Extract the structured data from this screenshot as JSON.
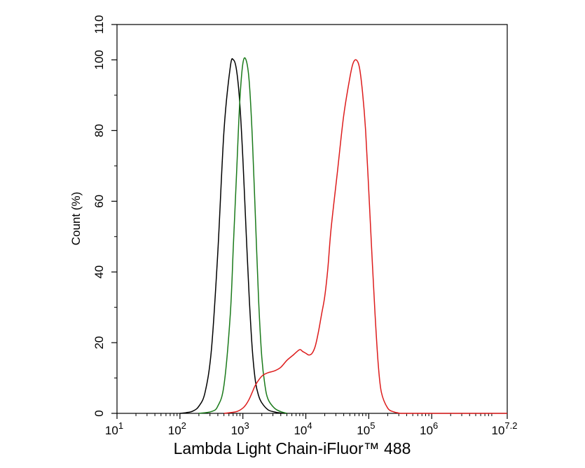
{
  "chart_data": {
    "type": "line",
    "title": "",
    "xlabel": "Lambda Light Chain-iFluor™ 488",
    "ylabel": "Count  (%)",
    "x_scale": "log",
    "xlim": [
      1,
      7.2
    ],
    "ylim": [
      0,
      110
    ],
    "grid": false,
    "legend": "none",
    "x_ticks": [
      {
        "base": "10",
        "exp": "1",
        "value": 1
      },
      {
        "base": "10",
        "exp": "2",
        "value": 2
      },
      {
        "base": "10",
        "exp": "3",
        "value": 3
      },
      {
        "base": "10",
        "exp": "4",
        "value": 4
      },
      {
        "base": "10",
        "exp": "5",
        "value": 5
      },
      {
        "base": "10",
        "exp": "6",
        "value": 6
      },
      {
        "base": "10",
        "exp": "7.2",
        "value": 7.2
      }
    ],
    "y_ticks": [
      "0",
      "20",
      "40",
      "60",
      "80",
      "100",
      "110"
    ],
    "series": [
      {
        "color": "#000000",
        "x": [
          2.0,
          2.1,
          2.2,
          2.3,
          2.4,
          2.5,
          2.6,
          2.7,
          2.8,
          2.85,
          2.9,
          2.95,
          3.0,
          3.05,
          3.1,
          3.15,
          3.2,
          3.25,
          3.3,
          3.4,
          3.5,
          3.6,
          3.7
        ],
        "y": [
          0,
          0.2,
          0.6,
          2,
          6,
          18,
          45,
          80,
          98,
          100,
          97,
          88,
          72,
          52,
          33,
          18,
          9,
          5,
          3,
          1,
          0.4,
          0.1,
          0
        ]
      },
      {
        "color": "#1a7a1a",
        "x": [
          2.3,
          2.5,
          2.6,
          2.7,
          2.8,
          2.85,
          2.9,
          2.95,
          3.0,
          3.05,
          3.1,
          3.15,
          3.2,
          3.25,
          3.3,
          3.35,
          3.4,
          3.5,
          3.6,
          3.7
        ],
        "y": [
          0,
          0.5,
          2,
          8,
          28,
          48,
          68,
          88,
          99,
          100,
          94,
          78,
          55,
          32,
          16,
          8,
          4,
          1.5,
          0.5,
          0
        ]
      },
      {
        "color": "#dd1c1c",
        "x": [
          2.7,
          2.9,
          3.0,
          3.05,
          3.1,
          3.15,
          3.2,
          3.3,
          3.4,
          3.5,
          3.6,
          3.7,
          3.8,
          3.9,
          3.95,
          4.0,
          4.05,
          4.1,
          4.15,
          4.2,
          4.25,
          4.3,
          4.35,
          4.4,
          4.5,
          4.6,
          4.7,
          4.75,
          4.8,
          4.85,
          4.9,
          4.95,
          5.0,
          5.05,
          5.1,
          5.15,
          5.2,
          5.3,
          5.4,
          5.45,
          5.5,
          5.6,
          6.0,
          7.2
        ],
        "y": [
          0,
          0.5,
          1.5,
          2.5,
          4,
          6,
          8,
          10.5,
          11.5,
          12,
          13,
          15,
          16.5,
          18,
          17.5,
          17,
          16.5,
          17,
          19,
          23,
          28,
          33,
          41,
          52,
          68,
          84,
          95,
          99,
          100,
          98,
          91,
          80,
          63,
          45,
          28,
          14,
          6,
          1.5,
          0.4,
          0.2,
          0,
          0,
          0,
          0
        ]
      }
    ]
  }
}
